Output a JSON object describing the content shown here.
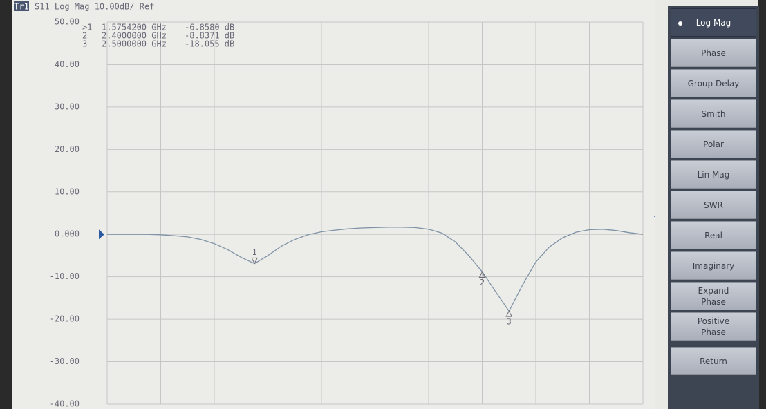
{
  "chart_data": {
    "type": "line",
    "trace_label": "Tr1",
    "title": "S11 Log Mag 10.00dB/ Ref",
    "ylim": [
      -40,
      50
    ],
    "yticks": [
      {
        "value": 50,
        "label": "50.00"
      },
      {
        "value": 40,
        "label": "40.00"
      },
      {
        "value": 30,
        "label": "30.00"
      },
      {
        "value": 20,
        "label": "20.00"
      },
      {
        "value": 10,
        "label": "10.00"
      },
      {
        "value": 0,
        "label": "0.000"
      },
      {
        "value": -10,
        "label": "-10.00"
      },
      {
        "value": -20,
        "label": "-20.00"
      },
      {
        "value": -30,
        "label": "-30.00"
      },
      {
        "value": -40,
        "label": "-40.00"
      }
    ],
    "grid": true,
    "color": "#7f93a6",
    "values": [
      0,
      0,
      0,
      0,
      -0.1,
      -0.3,
      -0.6,
      -1.2,
      -2.2,
      -3.6,
      -5.4,
      -6.9,
      -5.0,
      -2.8,
      -1.2,
      -0.1,
      0.6,
      1.0,
      1.3,
      1.5,
      1.6,
      1.7,
      1.7,
      1.6,
      1.2,
      0.3,
      -1.8,
      -5.0,
      -8.8,
      -13.5,
      -18.1,
      -12.0,
      -6.5,
      -3.0,
      -0.8,
      0.5,
      1.1,
      1.2,
      0.9,
      0.4,
      0
    ],
    "markers": [
      {
        "id": ">1",
        "trace_label": "1",
        "frequency": "1.5754200 GHz",
        "value": -6.858,
        "value_label": "-6.8580 dB"
      },
      {
        "id": "2",
        "trace_label": "2",
        "frequency": "2.4000000 GHz",
        "value": -8.8371,
        "value_label": "-8.8371 dB"
      },
      {
        "id": "3",
        "trace_label": "3",
        "frequency": "2.5000000 GHz",
        "value": -18.055,
        "value_label": "-18.055 dB"
      }
    ]
  },
  "menu": {
    "items": [
      "Log Mag",
      "Phase",
      "Group Delay",
      "Smith",
      "Polar",
      "Lin Mag",
      "SWR",
      "Real",
      "Imaginary",
      "Expand Phase",
      "Positive Phase",
      "Return"
    ],
    "selected": "Log Mag"
  }
}
